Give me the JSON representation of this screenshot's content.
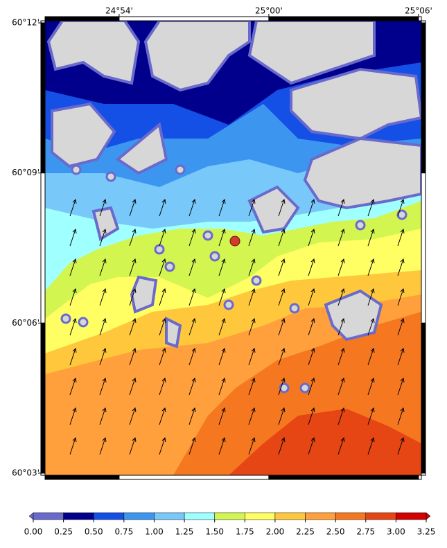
{
  "map": {
    "xlim": [
      24.8505,
      25.1019
    ],
    "ylim": [
      60.0493,
      60.2007
    ],
    "xticks": [
      {
        "value": 24.9,
        "label": "24°54'"
      },
      {
        "value": 25.0,
        "label": "25°00'"
      },
      {
        "value": 25.1,
        "label": "25°06'"
      }
    ],
    "yticks": [
      {
        "value": 60.2,
        "label": "60°12'"
      },
      {
        "value": 60.15,
        "label": "60°09'"
      },
      {
        "value": 60.1,
        "label": "60°06'"
      },
      {
        "value": 60.05,
        "label": "60°03'"
      }
    ]
  },
  "colorbar": {
    "ticks": [
      {
        "value": 0,
        "label": "0.00"
      },
      {
        "value": 0.25,
        "label": "0.25"
      },
      {
        "value": 0.5,
        "label": "0.50"
      },
      {
        "value": 0.75,
        "label": "0.75"
      },
      {
        "value": 1,
        "label": "1.00"
      },
      {
        "value": 1.25,
        "label": "1.25"
      },
      {
        "value": 1.5,
        "label": "1.50"
      },
      {
        "value": 1.75,
        "label": "1.75"
      },
      {
        "value": 2,
        "label": "2.00"
      },
      {
        "value": 2.25,
        "label": "2.25"
      },
      {
        "value": 2.5,
        "label": "2.50"
      },
      {
        "value": 2.75,
        "label": "2.75"
      },
      {
        "value": 3,
        "label": "3.00"
      },
      {
        "value": 3.25,
        "label": "3.25"
      }
    ],
    "colors": [
      "#6a6acd",
      "#00008c",
      "#1450e6",
      "#3c96f0",
      "#78c8fa",
      "#a0ffff",
      "#d2f550",
      "#ffff64",
      "#ffc83c",
      "#ffa03c",
      "#f57820",
      "#e64614",
      "#d20000"
    ]
  }
}
